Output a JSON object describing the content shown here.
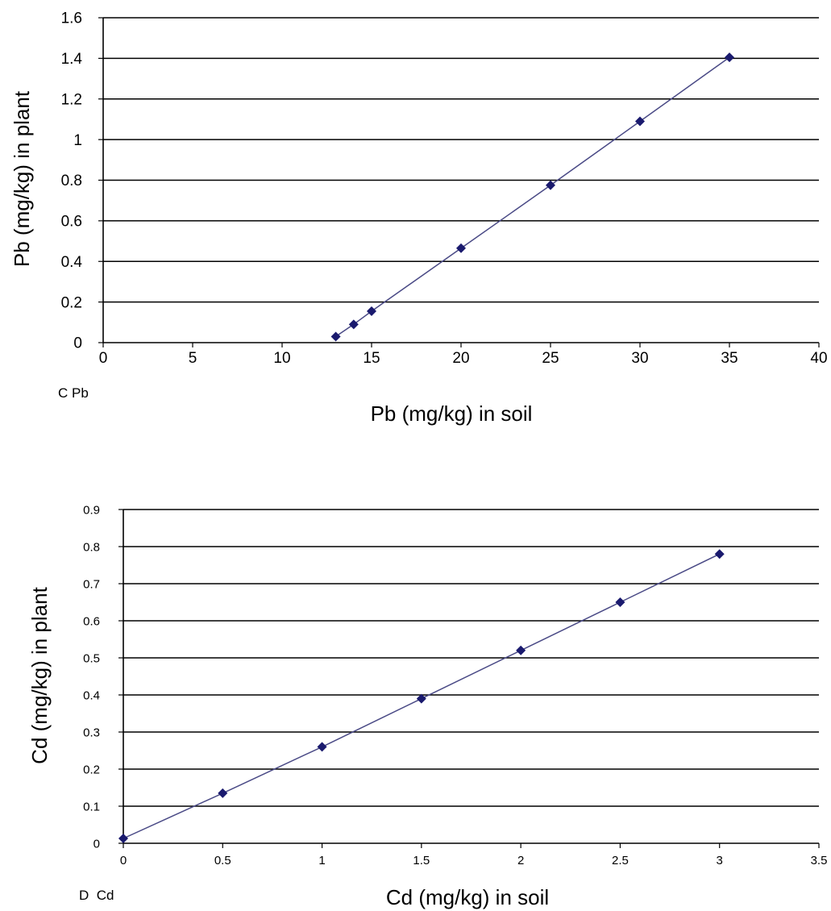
{
  "colors": {
    "grid": "#000000",
    "series_line": "#4a4a86",
    "marker": "#1a1a6e",
    "text": "#000000"
  },
  "chart_data": [
    {
      "type": "scatter",
      "panel_label": "C Pb",
      "title": "",
      "xlabel": "Pb (mg/kg) in soil",
      "ylabel": "Pb (mg/kg) in plant",
      "xlim": [
        0,
        40
      ],
      "ylim": [
        0,
        1.6
      ],
      "x_ticks": [
        "0",
        "5",
        "10",
        "15",
        "20",
        "25",
        "30",
        "35",
        "40"
      ],
      "y_ticks": [
        "0",
        "0.2",
        "0.4",
        "0.6",
        "0.8",
        "1",
        "1.2",
        "1.4",
        "1.6"
      ],
      "grid": "horizontal",
      "legend": "none",
      "marker": "diamond",
      "series": [
        {
          "x": [
            13,
            14,
            15,
            20,
            25,
            30,
            35
          ],
          "y": [
            0.03,
            0.09,
            0.155,
            0.465,
            0.775,
            1.09,
            1.405
          ]
        }
      ]
    },
    {
      "type": "scatter",
      "panel_label": "D  Cd",
      "title": "",
      "xlabel": "Cd (mg/kg) in soil",
      "ylabel": "Cd (mg/kg) in plant",
      "xlim": [
        0,
        3.5
      ],
      "ylim": [
        0,
        0.9
      ],
      "x_ticks": [
        "0",
        "0.5",
        "1",
        "1.5",
        "2",
        "2.5",
        "3",
        "3.5"
      ],
      "y_ticks": [
        "0",
        "0.1",
        "0.2",
        "0.3",
        "0.4",
        "0.5",
        "0.6",
        "0.7",
        "0.8",
        "0.9"
      ],
      "grid": "horizontal",
      "legend": "none",
      "marker": "diamond",
      "series": [
        {
          "x": [
            0,
            0.5,
            1,
            1.5,
            2,
            2.5,
            3
          ],
          "y": [
            0.013,
            0.135,
            0.26,
            0.39,
            0.52,
            0.65,
            0.78
          ]
        }
      ]
    }
  ]
}
